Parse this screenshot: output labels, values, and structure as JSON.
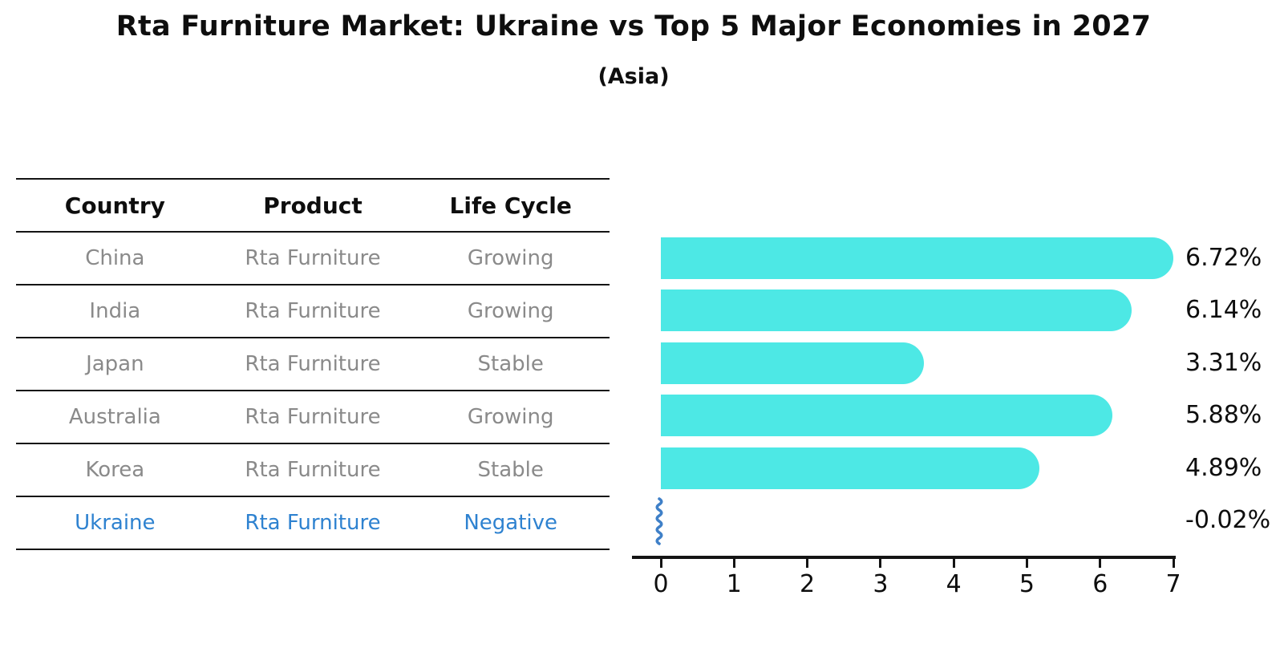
{
  "title": "Rta Furniture Market: Ukraine vs Top 5 Major Economies in 2027",
  "subtitle": "(Asia)",
  "colors": {
    "bar": "#4DE8E5",
    "highlight_text": "#2E82D0",
    "squiggle": "#3F80C8",
    "row_text": "#8A8A8A",
    "axis": "#141414"
  },
  "table": {
    "headers": [
      "Country",
      "Product",
      "Life Cycle"
    ],
    "rows": [
      {
        "country": "China",
        "product": "Rta Furniture",
        "life_cycle": "Growing",
        "highlight": false
      },
      {
        "country": "India",
        "product": "Rta Furniture",
        "life_cycle": "Growing",
        "highlight": false
      },
      {
        "country": "Japan",
        "product": "Rta Furniture",
        "life_cycle": "Stable",
        "highlight": false
      },
      {
        "country": "Australia",
        "product": "Rta Furniture",
        "life_cycle": "Growing",
        "highlight": false
      },
      {
        "country": "Korea",
        "product": "Rta Furniture",
        "life_cycle": "Stable",
        "highlight": false
      },
      {
        "country": "Ukraine",
        "product": "Rta Furniture",
        "life_cycle": "Negative",
        "highlight": true
      }
    ]
  },
  "chart_data": {
    "type": "bar",
    "orientation": "horizontal",
    "title": "Rta Furniture Market: Ukraine vs Top 5 Major Economies in 2027",
    "subtitle": "(Asia)",
    "categories": [
      "China",
      "India",
      "Japan",
      "Australia",
      "Korea",
      "Ukraine"
    ],
    "values": [
      6.72,
      6.14,
      3.31,
      5.88,
      4.89,
      -0.02
    ],
    "value_labels": [
      "6.72%",
      "6.14%",
      "3.31%",
      "5.88%",
      "4.89%",
      "-0.02%"
    ],
    "xlim": [
      0,
      7
    ],
    "xticks": [
      0,
      1,
      2,
      3,
      4,
      5,
      6,
      7
    ],
    "grid": false,
    "legend": "none",
    "bar_color": "#4DE8E5",
    "negative_bar_style": "blue vertical squiggle at zero"
  }
}
